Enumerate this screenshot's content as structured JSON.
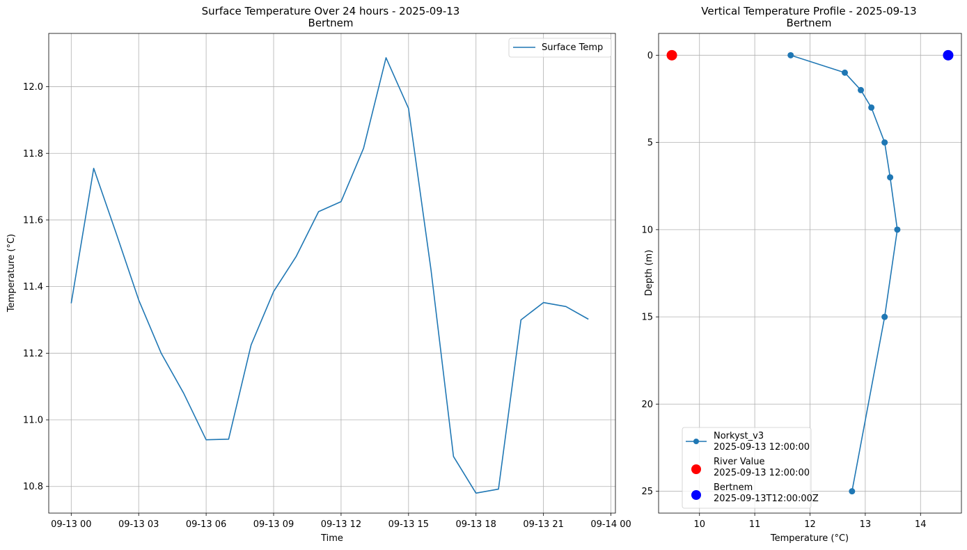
{
  "chart_data": [
    {
      "type": "line",
      "title": "Surface Temperature Over 24 hours - 2025-09-13",
      "subtitle": "Bertnem",
      "xlabel": "Time",
      "ylabel": "Temperature (°C)",
      "xlim": [
        -1.0,
        24.2
      ],
      "ylim": [
        10.72,
        12.16
      ],
      "x_ticks": [
        {
          "value": 0,
          "label": "09-13 00"
        },
        {
          "value": 3,
          "label": "09-13 03"
        },
        {
          "value": 6,
          "label": "09-13 06"
        },
        {
          "value": 9,
          "label": "09-13 09"
        },
        {
          "value": 12,
          "label": "09-13 12"
        },
        {
          "value": 15,
          "label": "09-13 15"
        },
        {
          "value": 18,
          "label": "09-13 18"
        },
        {
          "value": 21,
          "label": "09-13 21"
        },
        {
          "value": 24,
          "label": "09-14 00"
        }
      ],
      "y_ticks": [
        10.8,
        11.0,
        11.2,
        11.4,
        11.6,
        11.8,
        12.0
      ],
      "y_tick_labels": [
        "10.8",
        "11.0",
        "11.2",
        "11.4",
        "11.6",
        "11.8",
        "12.0"
      ],
      "grid": true,
      "legend": "upper-right",
      "series": [
        {
          "name": "Surface Temp",
          "color": "#1f77b4",
          "x": [
            0,
            1,
            2,
            3,
            4,
            5,
            6,
            7,
            8,
            9,
            10,
            11,
            12,
            13,
            14,
            15,
            16,
            17,
            18,
            19,
            20,
            21,
            22,
            23
          ],
          "values": [
            11.35,
            11.755,
            11.56,
            11.36,
            11.2,
            11.08,
            10.94,
            10.942,
            11.225,
            11.385,
            11.49,
            11.625,
            11.655,
            11.815,
            12.087,
            11.935,
            11.45,
            10.89,
            10.78,
            10.792,
            11.3,
            11.352,
            11.34,
            11.302
          ]
        }
      ]
    },
    {
      "type": "line",
      "title": "Vertical Temperature Profile - 2025-09-13",
      "subtitle": "Bertnem",
      "xlabel": "Temperature (°C)",
      "ylabel": "Depth (m)",
      "xlim": [
        9.26,
        14.74
      ],
      "ylim": [
        26.25,
        -1.25
      ],
      "y_inverted": true,
      "x_ticks": [
        10,
        11,
        12,
        13,
        14
      ],
      "x_tick_labels": [
        "10",
        "11",
        "12",
        "13",
        "14"
      ],
      "y_ticks": [
        0,
        5,
        10,
        15,
        20,
        25
      ],
      "y_tick_labels": [
        "0",
        "5",
        "10",
        "15",
        "20",
        "25"
      ],
      "grid": true,
      "legend": "lower-left",
      "series": [
        {
          "name": "Norkyst_v3",
          "time": "2025-09-13 12:00:00",
          "color": "#1f77b4",
          "marker": "circle",
          "x": [
            11.65,
            12.63,
            12.92,
            13.11,
            13.35,
            13.45,
            13.58,
            13.35,
            12.76
          ],
          "y": [
            0,
            1,
            2,
            3,
            5,
            7,
            10,
            15,
            25
          ]
        },
        {
          "name": "River Value",
          "time": "2025-09-13 12:00:00",
          "color": "#ff0000",
          "marker": "big-circle",
          "x": [
            9.5
          ],
          "y": [
            0
          ]
        },
        {
          "name": "Bertnem",
          "time": "2025-09-13T12:00:00Z",
          "color": "#0000ff",
          "marker": "big-circle",
          "x": [
            14.5
          ],
          "y": [
            0
          ]
        }
      ]
    }
  ]
}
